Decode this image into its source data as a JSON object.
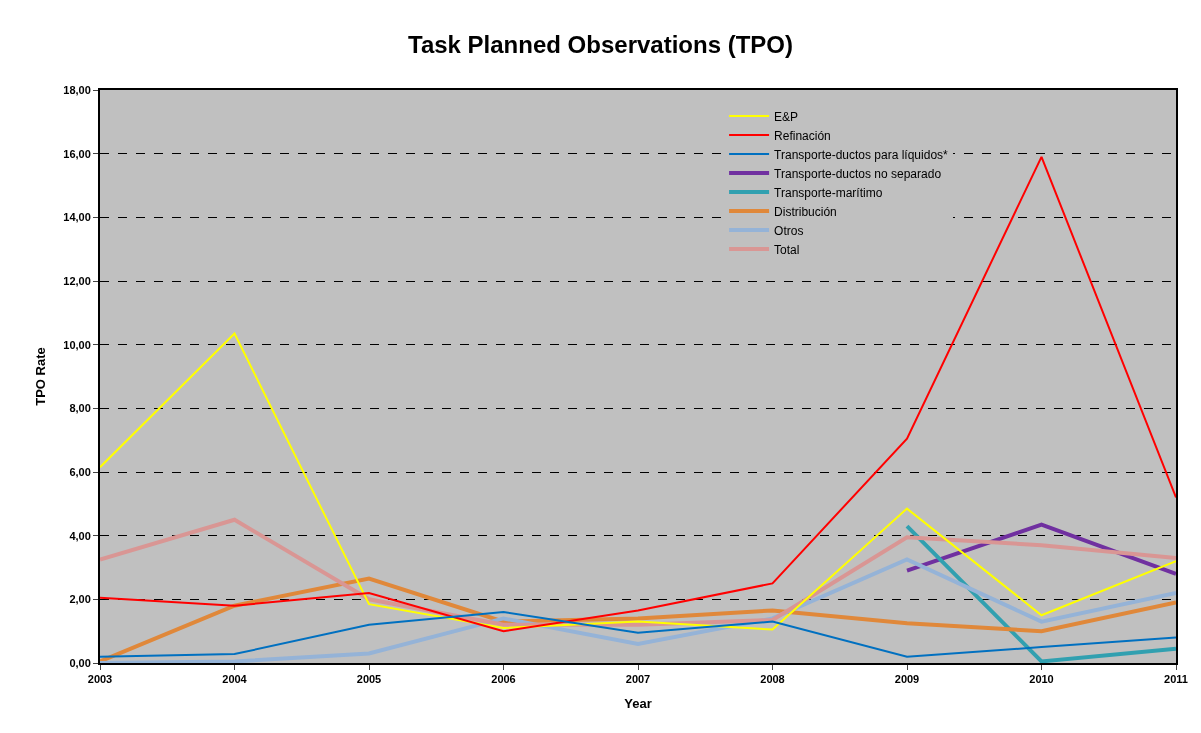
{
  "chart_data": {
    "type": "line",
    "title": "Task Planned Observations (TPO)",
    "xlabel": "Year",
    "ylabel": "TPO Rate",
    "x": [
      2003,
      2004,
      2005,
      2006,
      2007,
      2008,
      2009,
      2010,
      2011
    ],
    "xlim": [
      2003,
      2011
    ],
    "xticks": [
      2003,
      2004,
      2005,
      2006,
      2007,
      2008,
      2009,
      2010,
      2011
    ],
    "ylim": [
      0,
      18
    ],
    "yticks": [
      {
        "value": 0,
        "label": "0,00"
      },
      {
        "value": 2,
        "label": "2,00"
      },
      {
        "value": 4,
        "label": "4,00"
      },
      {
        "value": 6,
        "label": "6,00"
      },
      {
        "value": 8,
        "label": "8,00"
      },
      {
        "value": 10,
        "label": "10,00"
      },
      {
        "value": 12,
        "label": "12,00"
      },
      {
        "value": 14,
        "label": "14,00"
      },
      {
        "value": 16,
        "label": "16,00"
      },
      {
        "value": 18,
        "label": "18,00"
      }
    ],
    "grid": "y",
    "legend": "top",
    "marker": "none",
    "line_style": "solid",
    "series": [
      {
        "name": "E&P",
        "color": "#ffff00",
        "values": [
          6.15,
          10.35,
          1.85,
          1.1,
          1.3,
          1.05,
          4.85,
          1.5,
          3.2
        ]
      },
      {
        "name": "Refinación",
        "color": "#ff0000",
        "values": [
          2.05,
          1.8,
          2.2,
          1.0,
          1.65,
          2.5,
          7.05,
          15.9,
          5.2
        ]
      },
      {
        "name": "Transporte-ductos para líquidos*",
        "color": "#0070c0",
        "values": [
          0.2,
          0.28,
          1.2,
          1.6,
          0.95,
          1.3,
          0.2,
          0.5,
          0.8
        ]
      },
      {
        "name": "Transporte-ductos no separado",
        "color": "#7030a0",
        "values": [
          null,
          null,
          null,
          null,
          null,
          null,
          2.9,
          4.35,
          2.8
        ]
      },
      {
        "name": "Transporte-marítimo",
        "color": "#31a0b0",
        "values": [
          null,
          null,
          null,
          null,
          null,
          null,
          4.3,
          0.05,
          0.45
        ]
      },
      {
        "name": "Distribución",
        "color": "#e0883a",
        "values": [
          0.05,
          1.8,
          2.65,
          1.3,
          1.4,
          1.65,
          1.25,
          1.0,
          1.9
        ]
      },
      {
        "name": "Otros",
        "color": "#95b3d7",
        "values": [
          0.0,
          0.05,
          0.3,
          1.4,
          0.6,
          1.4,
          3.25,
          1.3,
          2.2
        ]
      },
      {
        "name": "Total",
        "color": "#d99694",
        "values": [
          3.25,
          4.5,
          2.0,
          1.2,
          1.2,
          1.35,
          3.95,
          3.7,
          3.3
        ]
      }
    ]
  }
}
